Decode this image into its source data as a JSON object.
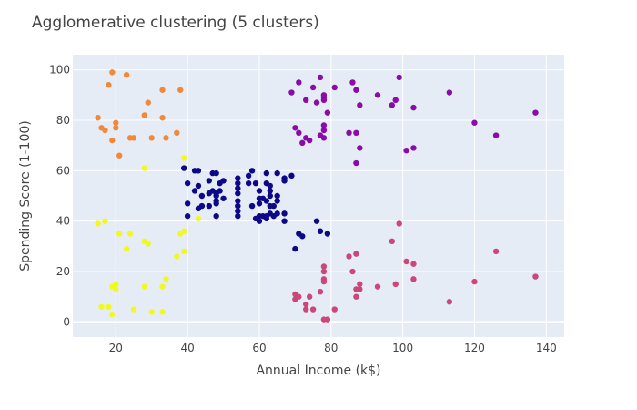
{
  "chart_data": {
    "type": "scatter",
    "title": "Agglomerative clustering (5 clusters)",
    "xlabel": "Annual Income (k$)",
    "ylabel": "Spending Score (1-100)",
    "xlim": [
      8,
      145
    ],
    "ylim": [
      -6,
      106
    ],
    "xticks": [
      20,
      40,
      60,
      80,
      100,
      120,
      140
    ],
    "yticks": [
      0,
      20,
      40,
      60,
      80,
      100
    ],
    "grid": true,
    "legend": "none",
    "plot_bg": "#e5ecf6",
    "grid_color": "#ffffff",
    "series": [
      {
        "color": "#f0893a",
        "points": [
          [
            15,
            81
          ],
          [
            16,
            77
          ],
          [
            17,
            76
          ],
          [
            18,
            94
          ],
          [
            19,
            99
          ],
          [
            19,
            72
          ],
          [
            20,
            79
          ],
          [
            20,
            77
          ],
          [
            21,
            66
          ],
          [
            23,
            98
          ],
          [
            24,
            73
          ],
          [
            25,
            73
          ],
          [
            28,
            82
          ],
          [
            29,
            87
          ],
          [
            30,
            73
          ],
          [
            33,
            92
          ],
          [
            33,
            81
          ],
          [
            34,
            73
          ],
          [
            37,
            75
          ],
          [
            38,
            92
          ]
        ]
      },
      {
        "color": "#f0f921",
        "points": [
          [
            15,
            39
          ],
          [
            17,
            40
          ],
          [
            16,
            6
          ],
          [
            18,
            6
          ],
          [
            19,
            3
          ],
          [
            19,
            14
          ],
          [
            20,
            15
          ],
          [
            20,
            13
          ],
          [
            21,
            35
          ],
          [
            23,
            29
          ],
          [
            24,
            35
          ],
          [
            25,
            5
          ],
          [
            28,
            32
          ],
          [
            28,
            14
          ],
          [
            29,
            31
          ],
          [
            30,
            4
          ],
          [
            33,
            14
          ],
          [
            33,
            4
          ],
          [
            34,
            17
          ],
          [
            37,
            26
          ],
          [
            38,
            35
          ],
          [
            39,
            36
          ],
          [
            39,
            28
          ],
          [
            28,
            61
          ],
          [
            39,
            65
          ],
          [
            43,
            41
          ]
        ]
      },
      {
        "color": "#0d0887",
        "points": [
          [
            39,
            61
          ],
          [
            40,
            55
          ],
          [
            40,
            47
          ],
          [
            40,
            42
          ],
          [
            42,
            52
          ],
          [
            42,
            60
          ],
          [
            43,
            54
          ],
          [
            43,
            60
          ],
          [
            43,
            45
          ],
          [
            44,
            50
          ],
          [
            44,
            46
          ],
          [
            46,
            51
          ],
          [
            46,
            46
          ],
          [
            46,
            56
          ],
          [
            47,
            52
          ],
          [
            47,
            59
          ],
          [
            48,
            59
          ],
          [
            48,
            51
          ],
          [
            48,
            50
          ],
          [
            48,
            48
          ],
          [
            48,
            47
          ],
          [
            48,
            42
          ],
          [
            49,
            55
          ],
          [
            49,
            52
          ],
          [
            50,
            56
          ],
          [
            50,
            49
          ],
          [
            54,
            57
          ],
          [
            54,
            55
          ],
          [
            54,
            53
          ],
          [
            54,
            51
          ],
          [
            54,
            48
          ],
          [
            54,
            46
          ],
          [
            54,
            44
          ],
          [
            54,
            42
          ],
          [
            57,
            58
          ],
          [
            57,
            55
          ],
          [
            58,
            60
          ],
          [
            58,
            46
          ],
          [
            59,
            55
          ],
          [
            59,
            41
          ],
          [
            60,
            52
          ],
          [
            60,
            49
          ],
          [
            60,
            47
          ],
          [
            60,
            42
          ],
          [
            60,
            40
          ],
          [
            61,
            49
          ],
          [
            61,
            42
          ],
          [
            62,
            59
          ],
          [
            62,
            55
          ],
          [
            62,
            48
          ],
          [
            62,
            42
          ],
          [
            62,
            41
          ],
          [
            63,
            54
          ],
          [
            63,
            52
          ],
          [
            63,
            50
          ],
          [
            63,
            46
          ],
          [
            63,
            43
          ],
          [
            64,
            46
          ],
          [
            64,
            42
          ],
          [
            65,
            59
          ],
          [
            65,
            50
          ],
          [
            65,
            48
          ],
          [
            65,
            43
          ],
          [
            67,
            57
          ],
          [
            67,
            56
          ],
          [
            67,
            43
          ],
          [
            67,
            40
          ],
          [
            69,
            58
          ],
          [
            70,
            29
          ],
          [
            71,
            35
          ],
          [
            72,
            34
          ],
          [
            76,
            40
          ],
          [
            77,
            36
          ],
          [
            79,
            35
          ]
        ]
      },
      {
        "color": "#8a0ba7",
        "points": [
          [
            69,
            91
          ],
          [
            70,
            77
          ],
          [
            71,
            95
          ],
          [
            71,
            75
          ],
          [
            72,
            71
          ],
          [
            73,
            88
          ],
          [
            73,
            73
          ],
          [
            74,
            72
          ],
          [
            75,
            93
          ],
          [
            76,
            87
          ],
          [
            77,
            97
          ],
          [
            77,
            74
          ],
          [
            78,
            90
          ],
          [
            78,
            89
          ],
          [
            78,
            88
          ],
          [
            78,
            78
          ],
          [
            78,
            76
          ],
          [
            78,
            73
          ],
          [
            79,
            83
          ],
          [
            81,
            93
          ],
          [
            85,
            75
          ],
          [
            86,
            95
          ],
          [
            87,
            92
          ],
          [
            87,
            75
          ],
          [
            87,
            63
          ],
          [
            88,
            86
          ],
          [
            88,
            69
          ],
          [
            93,
            90
          ],
          [
            97,
            86
          ],
          [
            98,
            88
          ],
          [
            99,
            97
          ],
          [
            101,
            68
          ],
          [
            103,
            85
          ],
          [
            103,
            69
          ],
          [
            113,
            91
          ],
          [
            120,
            79
          ],
          [
            126,
            74
          ],
          [
            137,
            83
          ]
        ]
      },
      {
        "color": "#cb4679",
        "points": [
          [
            70,
            11
          ],
          [
            70,
            9
          ],
          [
            71,
            10
          ],
          [
            73,
            5
          ],
          [
            73,
            7
          ],
          [
            74,
            10
          ],
          [
            75,
            5
          ],
          [
            77,
            12
          ],
          [
            78,
            22
          ],
          [
            78,
            20
          ],
          [
            78,
            17
          ],
          [
            78,
            16
          ],
          [
            78,
            1
          ],
          [
            79,
            1
          ],
          [
            81,
            5
          ],
          [
            85,
            26
          ],
          [
            86,
            20
          ],
          [
            87,
            27
          ],
          [
            87,
            13
          ],
          [
            87,
            10
          ],
          [
            88,
            13
          ],
          [
            88,
            15
          ],
          [
            93,
            14
          ],
          [
            97,
            32
          ],
          [
            98,
            15
          ],
          [
            99,
            39
          ],
          [
            101,
            24
          ],
          [
            103,
            23
          ],
          [
            103,
            17
          ],
          [
            113,
            8
          ],
          [
            120,
            16
          ],
          [
            126,
            28
          ],
          [
            137,
            18
          ]
        ]
      }
    ]
  }
}
